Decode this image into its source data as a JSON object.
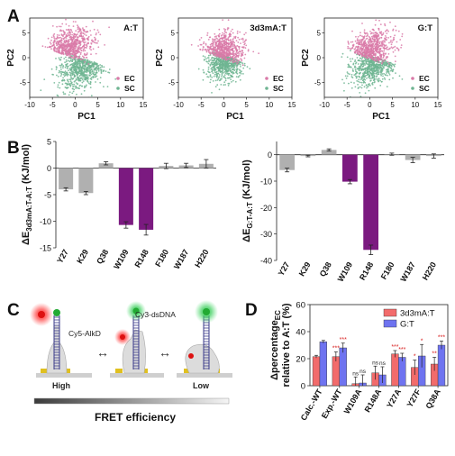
{
  "panel_labels": {
    "A": "A",
    "B": "B",
    "C": "C",
    "D": "D"
  },
  "palette": {
    "ec": "#d97aa8",
    "sc": "#6fb592",
    "gray_bar": "#b0b0b0",
    "purple_bar": "#7b1a80",
    "bar_3d3mA": "#f26b6b",
    "bar_GT": "#6e73f0",
    "sig_red": "#d81e1e"
  },
  "panel_a": {
    "ylabel": "PC2",
    "xlabel": "PC1",
    "legend": [
      "EC",
      "SC"
    ],
    "titles": [
      "A:T",
      "3d3mA:T",
      "G:T"
    ],
    "xticks": [
      "-10",
      "-5",
      "0",
      "5",
      "10",
      "15"
    ],
    "yticks": [
      "5",
      "0",
      "-5"
    ]
  },
  "panel_b": {
    "categories": [
      "Y27",
      "K29",
      "Q38",
      "W109",
      "R148",
      "F180",
      "W187",
      "H220"
    ]
  },
  "panel_c": {
    "labels": {
      "cy5": "Cy5-AlkD",
      "cy3": "Cy3-dsDNA",
      "high": "High",
      "low": "Low",
      "fret": "FRET efficiency",
      "arrow": "↔"
    }
  },
  "chart_data": [
    {
      "type": "scatter",
      "title": "A:T",
      "xlabel": "PC1",
      "ylabel": "PC2",
      "xlim": [
        -10,
        15
      ],
      "ylim": [
        -8,
        8
      ],
      "xticks": [
        -10,
        -5,
        0,
        5,
        10,
        15
      ],
      "yticks": [
        5,
        0,
        -5
      ],
      "series": [
        {
          "name": "EC",
          "x_range": [
            -7,
            4
          ],
          "y_range": [
            -3,
            6
          ]
        },
        {
          "name": "SC",
          "x_range": [
            -5,
            9
          ],
          "y_range": [
            -7,
            3
          ]
        }
      ],
      "legend": "bottom-right"
    },
    {
      "type": "scatter",
      "title": "3d3mA:T",
      "xlabel": "PC1",
      "ylabel": "PC2",
      "xlim": [
        -10,
        15
      ],
      "ylim": [
        -8,
        8
      ],
      "xticks": [
        -10,
        -5,
        0,
        5,
        10,
        15
      ],
      "yticks": [
        5,
        0,
        -5
      ],
      "series": [
        {
          "name": "EC",
          "x_range": [
            -5,
            4
          ],
          "y_range": [
            -4,
            6
          ]
        },
        {
          "name": "SC",
          "x_range": [
            -4,
            5
          ],
          "y_range": [
            -5,
            4
          ]
        }
      ],
      "legend": "bottom-right"
    },
    {
      "type": "scatter",
      "title": "G:T",
      "xlabel": "PC1",
      "ylabel": "PC2",
      "xlim": [
        -10,
        15
      ],
      "ylim": [
        -8,
        8
      ],
      "xticks": [
        -10,
        -5,
        0,
        5,
        10,
        15
      ],
      "yticks": [
        5,
        0,
        -5
      ],
      "series": [
        {
          "name": "EC",
          "x_range": [
            -6,
            5
          ],
          "y_range": [
            -3,
            6
          ]
        },
        {
          "name": "SC",
          "x_range": [
            -5,
            7
          ],
          "y_range": [
            -7,
            4
          ]
        }
      ],
      "legend": "bottom-right"
    },
    {
      "type": "bar",
      "ylabel": "ΔE3d3mA:T-A:T (KJ/mol)",
      "ylabel_parts": {
        "main": "ΔE",
        "sub": "3d3mA:T-A:T",
        "unit": " (KJ/mol)"
      },
      "categories": [
        "Y27",
        "K29",
        "Q38",
        "W109",
        "R148",
        "F180",
        "W187",
        "H220"
      ],
      "values": [
        -4.0,
        -4.7,
        0.9,
        -10.7,
        -11.6,
        0.4,
        0.5,
        0.8
      ],
      "errors": [
        0.3,
        0.3,
        0.3,
        0.6,
        1.0,
        0.5,
        0.4,
        0.8
      ],
      "colors": [
        "gray",
        "gray",
        "gray",
        "purple",
        "purple",
        "gray",
        "gray",
        "gray"
      ],
      "ylim": [
        -15,
        5
      ],
      "yticks": [
        5,
        0,
        -5,
        -10,
        -15
      ]
    },
    {
      "type": "bar",
      "ylabel": "ΔEG:T-A:T (KJ/mol)",
      "ylabel_parts": {
        "main": "ΔE",
        "sub": "G:T-A:T",
        "unit": " (KJ/mol)"
      },
      "categories": [
        "Y27",
        "K29",
        "Q38",
        "W109",
        "R148",
        "F180",
        "W187",
        "H220"
      ],
      "values": [
        -5.8,
        -0.5,
        1.8,
        -10.2,
        -36.0,
        0.2,
        -2.0,
        -0.5
      ],
      "errors": [
        0.7,
        0.3,
        0.4,
        0.8,
        1.8,
        0.4,
        1.0,
        0.8
      ],
      "colors": [
        "gray",
        "gray",
        "gray",
        "purple",
        "purple",
        "gray",
        "gray",
        "gray"
      ],
      "ylim": [
        -40,
        5
      ],
      "yticks": [
        0,
        -10,
        -20,
        -30,
        -40
      ]
    },
    {
      "type": "bar",
      "ylabel": "Δpercentage_EC relative to A:T (%)",
      "ylabel_parts": {
        "main": "Δpercentage",
        "sub": "EC",
        "line2": "relative to A:T (%)"
      },
      "categories": [
        "Calc.-WT",
        "Exp.-WT",
        "W109A",
        "R148A",
        "Y27A",
        "Y27F",
        "Q38A"
      ],
      "series": [
        {
          "name": "3d3mA:T",
          "values": [
            21.5,
            21.5,
            1.5,
            9.5,
            23.5,
            13.5,
            16.0
          ],
          "errors": [
            1.0,
            3.5,
            5.0,
            5.0,
            2.5,
            5.5,
            5.0
          ],
          "sig": [
            "",
            "***",
            "ns",
            "ns",
            "***",
            "*",
            "**"
          ]
        },
        {
          "name": "G:T",
          "values": [
            32.5,
            28.0,
            2.0,
            8.0,
            21.0,
            22.0,
            30.0
          ],
          "errors": [
            1.0,
            3.5,
            6.0,
            6.0,
            3.0,
            8.5,
            3.0
          ],
          "sig": [
            "",
            "***",
            "ns",
            "ns",
            "***",
            "*",
            "***"
          ]
        }
      ],
      "ylim": [
        0,
        60
      ],
      "yticks": [
        0,
        20,
        40,
        60
      ],
      "legend": "top-right"
    }
  ]
}
